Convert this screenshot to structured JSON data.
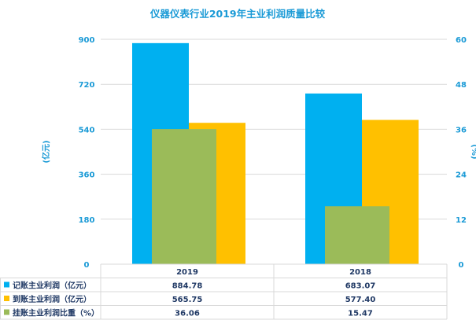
{
  "chart_data": {
    "type": "bar",
    "title": "仪器仪表行业2019年主业利润质量比较",
    "categories": [
      "2019",
      "2018"
    ],
    "y_left": {
      "label": "(亿元)",
      "ylim": [
        0,
        900
      ],
      "ticks": [
        0,
        180,
        360,
        540,
        720,
        900
      ]
    },
    "y_right": {
      "label": "(%)",
      "ylim": [
        0,
        60
      ],
      "ticks": [
        0,
        12,
        24,
        36,
        48,
        60
      ]
    },
    "series": [
      {
        "name": "记账主业利润（亿元）",
        "axis": "left",
        "color": "#00b0f0",
        "values": [
          884.78,
          683.07
        ],
        "labels": [
          "884.78",
          "683.07"
        ]
      },
      {
        "name": "到账主业利润（亿元）",
        "axis": "left",
        "color": "#ffc000",
        "values": [
          565.75,
          577.4
        ],
        "labels": [
          "565.75",
          "577.40"
        ]
      },
      {
        "name": "挂账主业利润比重（%）",
        "axis": "right",
        "color": "#9bbb59",
        "values": [
          36.06,
          15.47
        ],
        "labels": [
          "36.06",
          "15.47"
        ]
      }
    ],
    "grid": true,
    "legend": "data-table-bottom"
  }
}
